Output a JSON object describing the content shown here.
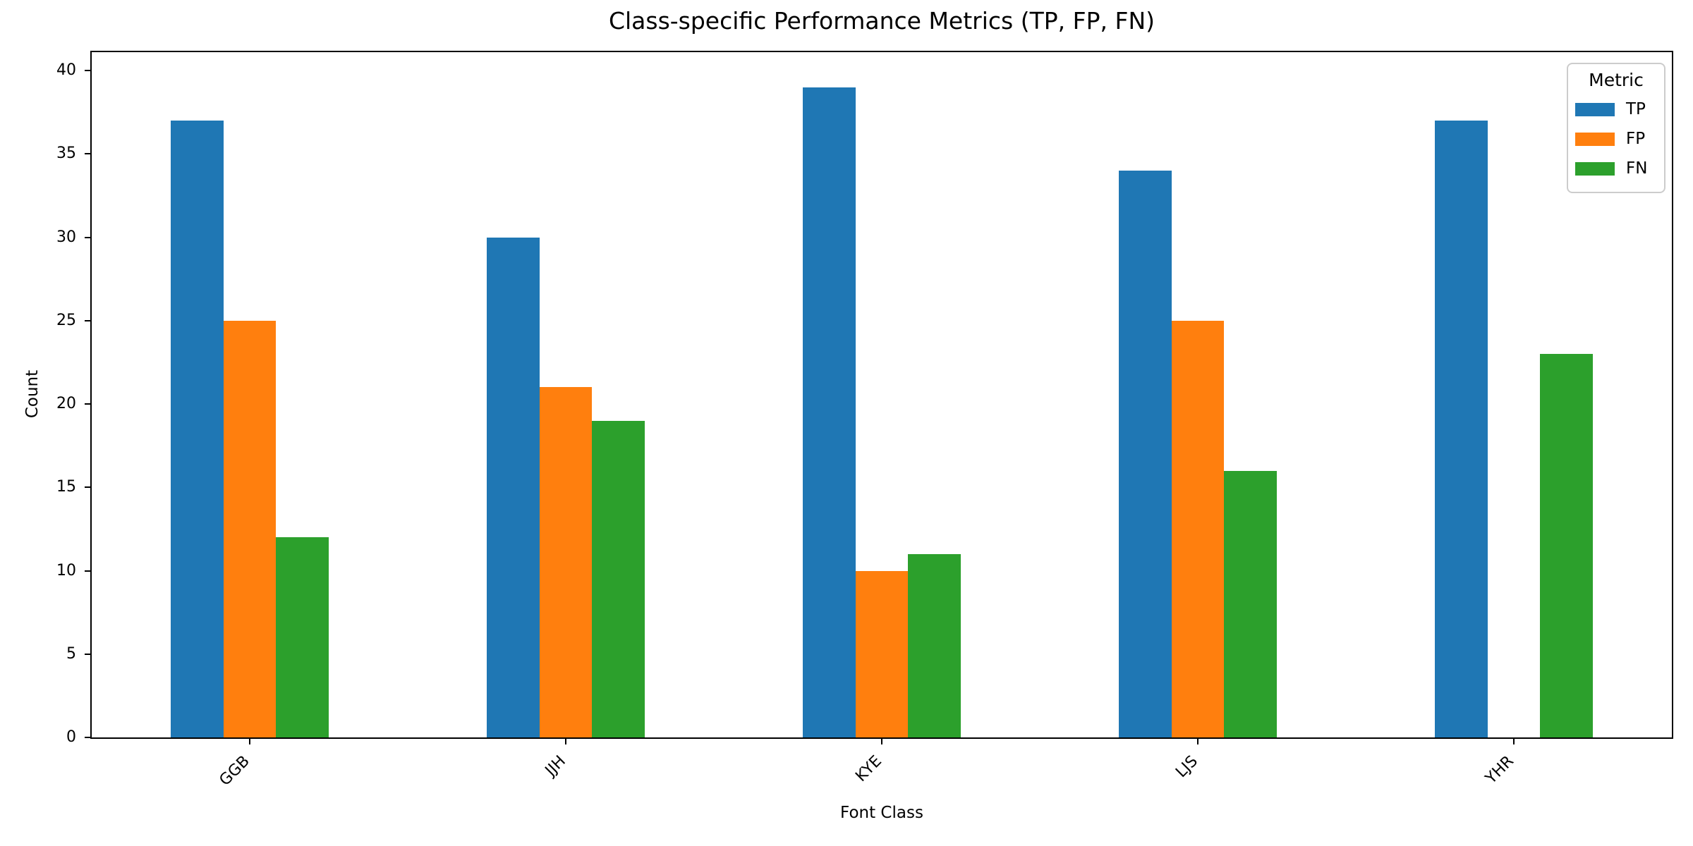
{
  "chart_data": {
    "type": "bar",
    "title": "Class-specific Performance Metrics (TP, FP, FN)",
    "xlabel": "Font Class",
    "ylabel": "Count",
    "categories": [
      "GGB",
      "JJH",
      "KYE",
      "LJS",
      "YHR"
    ],
    "series": [
      {
        "name": "TP",
        "color": "#1f77b4",
        "values": [
          37,
          30,
          39,
          34,
          37
        ]
      },
      {
        "name": "FP",
        "color": "#ff7f0e",
        "values": [
          25,
          21,
          10,
          25,
          0
        ]
      },
      {
        "name": "FN",
        "color": "#2ca02c",
        "values": [
          12,
          19,
          11,
          16,
          23
        ]
      }
    ],
    "legend_title": "Metric",
    "legend_position": "upper right",
    "yticks": [
      0,
      5,
      10,
      15,
      20,
      25,
      30,
      35,
      40
    ],
    "ylim": [
      0,
      41.1
    ],
    "xtick_rotation": 45,
    "grid": false
  }
}
